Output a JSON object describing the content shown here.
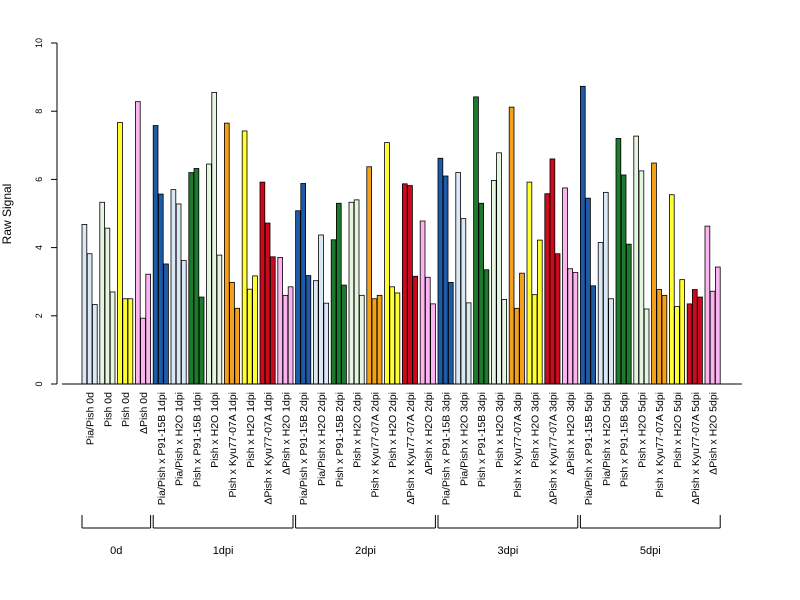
{
  "chart_data": {
    "type": "bar",
    "ylabel": "Raw Signal",
    "ylim": [
      0,
      10
    ],
    "yticks": [
      0,
      2,
      4,
      6,
      8,
      10
    ],
    "grid": false,
    "categories": [
      {
        "label": "Pia/Pish 0d",
        "color": "#dbe8f6",
        "values": [
          4.68,
          3.82,
          2.33
        ]
      },
      {
        "label": "Pish 0d",
        "color": "#e5f5e0",
        "values": [
          5.33,
          4.57,
          2.7
        ]
      },
      {
        "label": "Pish 0d",
        "color": "#ffff33",
        "values": [
          7.67,
          2.5,
          2.5
        ]
      },
      {
        "label": "ΔPish 0d",
        "color": "#fbb4f0",
        "values": [
          8.28,
          1.93,
          3.22
        ]
      },
      {
        "label": "Pia/Pish x P91-15B 1dpi",
        "color": "#1f5aa6",
        "values": [
          7.58,
          5.57,
          3.52
        ]
      },
      {
        "label": "Pia/Pish x H2O 1dpi",
        "color": "#dbe8f6",
        "values": [
          5.7,
          5.28,
          3.62
        ]
      },
      {
        "label": "Pish x P91-15B 1dpi",
        "color": "#1d7a2c",
        "values": [
          6.2,
          6.32,
          2.55
        ]
      },
      {
        "label": "Pish x H2O 1dpi",
        "color": "#e5f5e0",
        "values": [
          6.45,
          8.55,
          3.78
        ]
      },
      {
        "label": "Pish x Kyu77-07A 1dpi",
        "color": "#f5a01a",
        "values": [
          7.65,
          2.98,
          2.22
        ]
      },
      {
        "label": "Pish x H2O 1dpi",
        "color": "#ffff33",
        "values": [
          7.42,
          2.78,
          3.17
        ]
      },
      {
        "label": "ΔPish x Kyu77-07A 1dpi",
        "color": "#cc0a1e",
        "values": [
          5.92,
          4.72,
          3.73
        ]
      },
      {
        "label": "ΔPish x H2O 1dpi",
        "color": "#fbb4f0",
        "values": [
          3.71,
          2.6,
          2.85
        ]
      },
      {
        "label": "Pia/Pish x P91-15B 2dpi",
        "color": "#1f5aa6",
        "values": [
          5.08,
          5.88,
          3.18
        ]
      },
      {
        "label": "Pia/Pish x H2O 2dpi",
        "color": "#dbe8f6",
        "values": [
          3.03,
          4.37,
          2.37
        ]
      },
      {
        "label": "Pish x P91-15B 2dpi",
        "color": "#1d7a2c",
        "values": [
          4.23,
          5.3,
          2.9
        ]
      },
      {
        "label": "Pish x H2O 2dpi",
        "color": "#e5f5e0",
        "values": [
          5.33,
          5.4,
          2.6
        ]
      },
      {
        "label": "Pish x Kyu77-07A 2dpi",
        "color": "#f5a01a",
        "values": [
          6.37,
          2.5,
          2.6
        ]
      },
      {
        "label": "Pish x H2O 2dpi",
        "color": "#ffff33",
        "values": [
          7.08,
          2.85,
          2.67
        ]
      },
      {
        "label": "ΔPish x Kyu77-07A 2dpi",
        "color": "#cc0a1e",
        "values": [
          5.87,
          5.82,
          3.16
        ]
      },
      {
        "label": "ΔPish x H2O 2dpi",
        "color": "#fbb4f0",
        "values": [
          4.78,
          3.13,
          2.35
        ]
      },
      {
        "label": "Pia/Pish x P91-15B 3dpi",
        "color": "#1f5aa6",
        "values": [
          6.62,
          6.1,
          2.98
        ]
      },
      {
        "label": "Pia/Pish x H2O 3dpi",
        "color": "#dbe8f6",
        "values": [
          6.2,
          4.85,
          2.38
        ]
      },
      {
        "label": "Pish x P91-15B 3dpi",
        "color": "#1d7a2c",
        "values": [
          8.42,
          5.3,
          3.35
        ]
      },
      {
        "label": "Pish x H2O 3dpi",
        "color": "#e5f5e0",
        "values": [
          5.97,
          6.78,
          2.48
        ]
      },
      {
        "label": "Pish x Kyu77-07A 3dpi",
        "color": "#f5a01a",
        "values": [
          8.12,
          2.22,
          3.25
        ]
      },
      {
        "label": "Pish x H2O 3dpi",
        "color": "#ffff33",
        "values": [
          5.92,
          2.62,
          4.22
        ]
      },
      {
        "label": "ΔPish x Kyu77-07A 3dpi",
        "color": "#cc0a1e",
        "values": [
          5.58,
          6.6,
          3.82
        ]
      },
      {
        "label": "ΔPish x H2O 3dpi",
        "color": "#fbb4f0",
        "values": [
          5.75,
          3.38,
          3.27
        ]
      },
      {
        "label": "Pia/Pish x P91-15B 5dpi",
        "color": "#1f5aa6",
        "values": [
          8.73,
          5.45,
          2.88
        ]
      },
      {
        "label": "Pia/Pish x H2O 5dpi",
        "color": "#dbe8f6",
        "values": [
          4.15,
          5.62,
          2.5
        ]
      },
      {
        "label": "Pish x P91-15B 5dpi",
        "color": "#1d7a2c",
        "values": [
          7.2,
          6.13,
          4.1
        ]
      },
      {
        "label": "Pish x H2O 5dpi",
        "color": "#e5f5e0",
        "values": [
          7.27,
          6.25,
          2.2
        ]
      },
      {
        "label": "Pish x Kyu77-07A 5dpi",
        "color": "#f5a01a",
        "values": [
          6.48,
          2.77,
          2.6
        ]
      },
      {
        "label": "Pish x H2O 5dpi",
        "color": "#ffff33",
        "values": [
          5.55,
          2.27,
          3.06
        ]
      },
      {
        "label": "ΔPish x Kyu77-07A 5dpi",
        "color": "#cc0a1e",
        "values": [
          2.35,
          2.77,
          2.55
        ]
      },
      {
        "label": "ΔPish x H2O 5dpi",
        "color": "#fbb4f0",
        "values": [
          4.63,
          2.72,
          3.43
        ]
      }
    ],
    "groups": [
      {
        "label": "0d",
        "start": 0,
        "end": 3
      },
      {
        "label": "1dpi",
        "start": 4,
        "end": 11
      },
      {
        "label": "2dpi",
        "start": 12,
        "end": 19
      },
      {
        "label": "3dpi",
        "start": 20,
        "end": 27
      },
      {
        "label": "5dpi",
        "start": 28,
        "end": 35
      }
    ]
  }
}
